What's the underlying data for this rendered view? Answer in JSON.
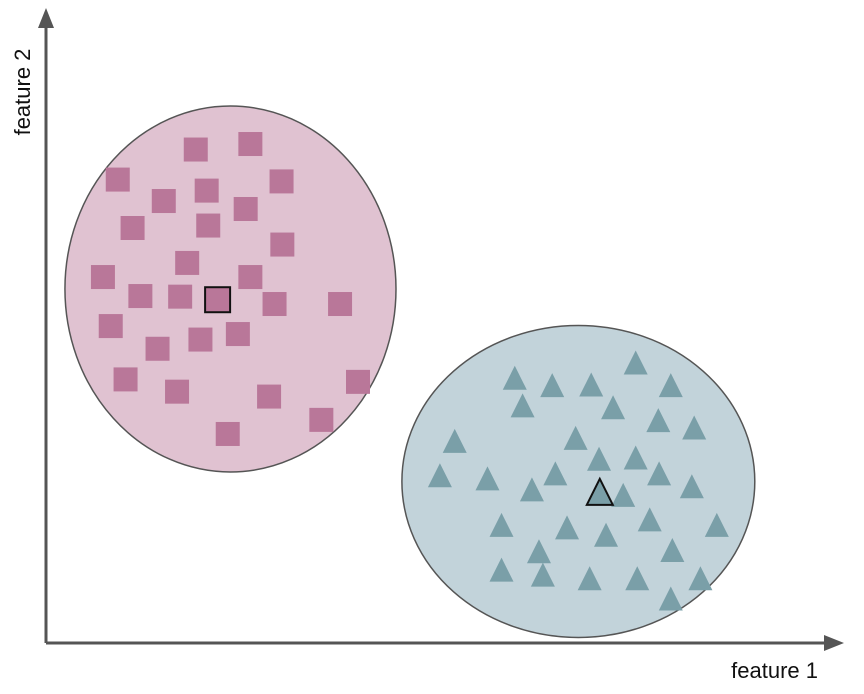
{
  "chart_data": {
    "type": "scatter",
    "xlabel": "feature 1",
    "ylabel": "feature 2",
    "grid": false,
    "xlim": [
      0,
      100
    ],
    "ylim": [
      0,
      100
    ],
    "clusters": [
      {
        "marker": "square",
        "color": "#b97799",
        "fill": "#e0c2d1",
        "stroke": "#555555",
        "centroid": [
          22,
          56
        ],
        "points": [
          [
            19.2,
            80.5
          ],
          [
            26.2,
            81.4
          ],
          [
            9.2,
            75.6
          ],
          [
            20.6,
            73.8
          ],
          [
            30.2,
            75.3
          ],
          [
            15.1,
            72.1
          ],
          [
            25.6,
            70.8
          ],
          [
            11.1,
            67.7
          ],
          [
            20.8,
            68.1
          ],
          [
            30.3,
            65.0
          ],
          [
            18.1,
            62.0
          ],
          [
            7.3,
            59.7
          ],
          [
            26.2,
            59.7
          ],
          [
            12.1,
            56.6
          ],
          [
            17.2,
            56.5
          ],
          [
            29.3,
            55.3
          ],
          [
            37.7,
            55.3
          ],
          [
            8.3,
            51.7
          ],
          [
            19.8,
            49.5
          ],
          [
            24.6,
            50.4
          ],
          [
            14.3,
            48.0
          ],
          [
            10.2,
            43.0
          ],
          [
            16.8,
            41.0
          ],
          [
            28.6,
            40.2
          ],
          [
            40.0,
            42.6
          ],
          [
            35.3,
            36.4
          ],
          [
            23.3,
            34.1
          ]
        ]
      },
      {
        "marker": "triangle",
        "color": "#7a9fa8",
        "fill": "#c2d3da",
        "stroke": "#555555",
        "centroid": [
          71,
          24.5
        ],
        "points": [
          [
            75.6,
            45.6
          ],
          [
            60.1,
            43.1
          ],
          [
            64.9,
            41.9
          ],
          [
            69.9,
            42.0
          ],
          [
            80.1,
            41.9
          ],
          [
            72.7,
            38.3
          ],
          [
            61.1,
            38.6
          ],
          [
            78.5,
            36.2
          ],
          [
            83.1,
            35.0
          ],
          [
            52.4,
            32.8
          ],
          [
            67.9,
            33.3
          ],
          [
            70.9,
            29.9
          ],
          [
            75.6,
            30.1
          ],
          [
            65.3,
            27.5
          ],
          [
            78.6,
            27.5
          ],
          [
            50.5,
            27.2
          ],
          [
            56.6,
            26.7
          ],
          [
            62.3,
            24.9
          ],
          [
            74.0,
            24.0
          ],
          [
            82.8,
            25.4
          ],
          [
            58.4,
            19.1
          ],
          [
            66.8,
            18.7
          ],
          [
            77.4,
            20.0
          ],
          [
            86.0,
            19.1
          ],
          [
            71.8,
            17.5
          ],
          [
            80.3,
            15.0
          ],
          [
            63.2,
            14.8
          ],
          [
            58.4,
            11.8
          ],
          [
            63.7,
            11.0
          ],
          [
            69.7,
            10.4
          ],
          [
            75.8,
            10.4
          ],
          [
            83.9,
            10.4
          ],
          [
            80.1,
            7.1
          ]
        ]
      }
    ]
  }
}
